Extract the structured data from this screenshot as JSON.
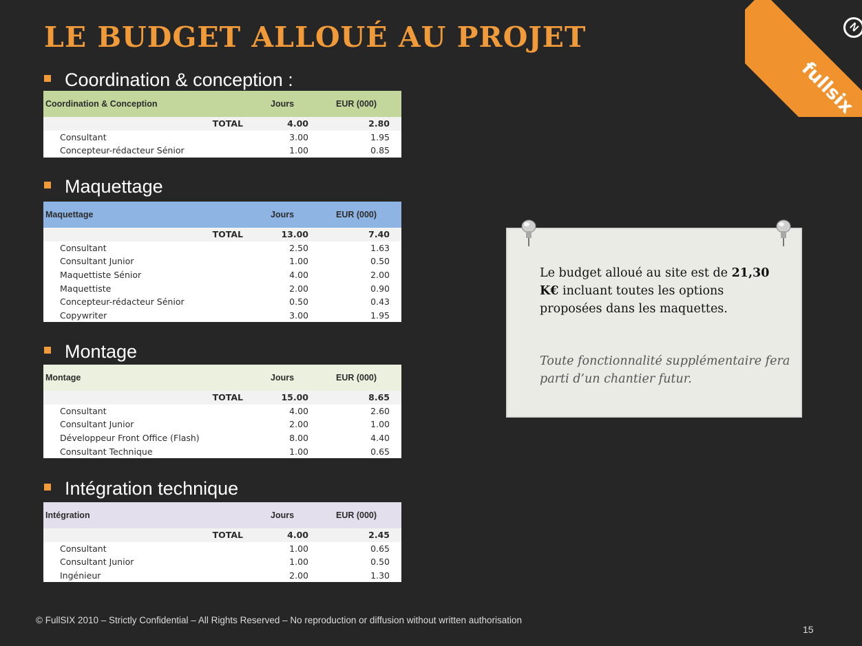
{
  "title": "LE BUDGET ALLOUÉ AU PROJET",
  "brand": {
    "logo_text": "fullsix",
    "logo_mark": "N",
    "accent": "#f19a3a"
  },
  "sections": [
    {
      "heading": "Coordination & conception :",
      "color": "#c3d69b",
      "columns": [
        "Coordination & Conception",
        "Jours",
        "EUR (000)"
      ],
      "total": {
        "label": "TOTAL",
        "jours": "4.00",
        "eur": "2.80"
      },
      "rows": [
        {
          "label": "Consultant",
          "jours": "3.00",
          "eur": "1.95"
        },
        {
          "label": "Concepteur-rédacteur Sénior",
          "jours": "1.00",
          "eur": "0.85"
        }
      ]
    },
    {
      "heading": "Maquettage",
      "color": "#8eb4e3",
      "columns": [
        "Maquettage",
        "Jours",
        "EUR (000)"
      ],
      "total": {
        "label": "TOTAL",
        "jours": "13.00",
        "eur": "7.40"
      },
      "rows": [
        {
          "label": "Consultant",
          "jours": "2.50",
          "eur": "1.63"
        },
        {
          "label": "Consultant Junior",
          "jours": "1.00",
          "eur": "0.50"
        },
        {
          "label": "Maquettiste Sénior",
          "jours": "4.00",
          "eur": "2.00"
        },
        {
          "label": "Maquettiste",
          "jours": "2.00",
          "eur": "0.90"
        },
        {
          "label": "Concepteur-rédacteur Sénior",
          "jours": "0.50",
          "eur": "0.43"
        },
        {
          "label": "Copywriter",
          "jours": "3.00",
          "eur": "1.95"
        }
      ]
    },
    {
      "heading": "Montage",
      "color": "#ebf1de",
      "columns": [
        "Montage",
        "Jours",
        "EUR (000)"
      ],
      "total": {
        "label": "TOTAL",
        "jours": "15.00",
        "eur": "8.65"
      },
      "rows": [
        {
          "label": "Consultant",
          "jours": "4.00",
          "eur": "2.60"
        },
        {
          "label": "Consultant Junior",
          "jours": "2.00",
          "eur": "1.00"
        },
        {
          "label": "Développeur Front Office (Flash)",
          "jours": "8.00",
          "eur": "4.40"
        },
        {
          "label": "Consultant Technique",
          "jours": "1.00",
          "eur": "0.65"
        }
      ]
    },
    {
      "heading": "Intégration technique",
      "color": "#e4dfec",
      "columns": [
        "Intégration",
        "Jours",
        "EUR (000)"
      ],
      "total": {
        "label": "TOTAL",
        "jours": "4.00",
        "eur": "2.45"
      },
      "rows": [
        {
          "label": "Consultant",
          "jours": "1.00",
          "eur": "0.65"
        },
        {
          "label": "Consultant Junior",
          "jours": "1.00",
          "eur": "0.50"
        },
        {
          "label": "Ingénieur",
          "jours": "2.00",
          "eur": "1.30"
        }
      ]
    }
  ],
  "note": {
    "line_prefix": "Le budget alloué au site est de",
    "amount": "21,30 K€",
    "line_suffix": "incluant toutes les options proposées dans les maquettes.",
    "italic": "Toute fonctionnalité supplémentaire fera parti d’un chantier futur."
  },
  "footer": "© FullSIX 2010 – Strictly Confidential – All Rights Reserved – No reproduction or diffusion  without written authorisation",
  "page_number": "15"
}
